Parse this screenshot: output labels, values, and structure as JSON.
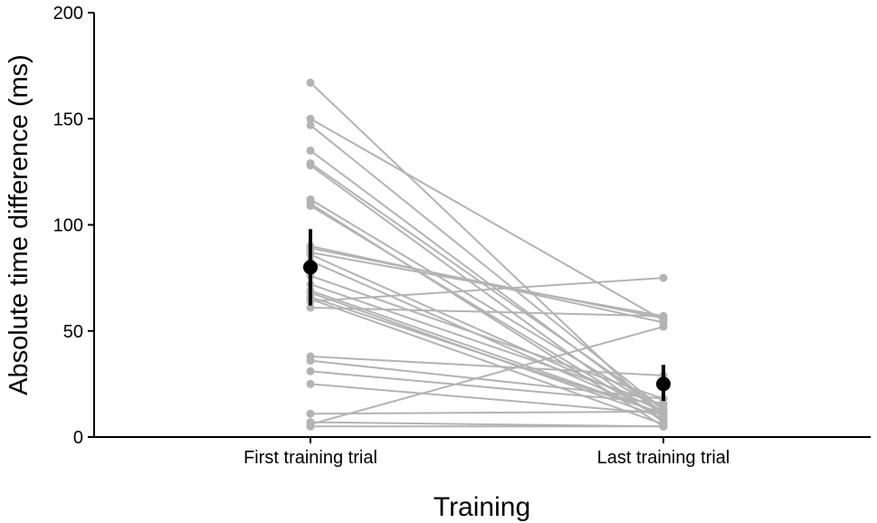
{
  "chart_data": {
    "type": "line",
    "xlabel": "Training",
    "ylabel": "Absolute time difference (ms)",
    "categories": [
      "First training trial",
      "Last training trial"
    ],
    "ylim": [
      0,
      200
    ],
    "yticks": [
      0,
      50,
      100,
      150,
      200
    ],
    "grid": false,
    "legend": "none",
    "colors": {
      "subject": "#b3b3b3",
      "mean": "#000000",
      "axis": "#000000"
    },
    "subjects": [
      [
        167,
        9
      ],
      [
        150,
        55
      ],
      [
        147,
        13
      ],
      [
        135,
        11
      ],
      [
        129,
        13
      ],
      [
        128,
        7
      ],
      [
        112,
        12
      ],
      [
        110,
        5
      ],
      [
        109,
        8
      ],
      [
        90,
        54
      ],
      [
        89,
        56
      ],
      [
        87,
        57
      ],
      [
        86,
        12
      ],
      [
        83,
        10
      ],
      [
        76,
        18
      ],
      [
        72,
        15
      ],
      [
        69,
        11
      ],
      [
        68,
        9
      ],
      [
        66,
        11
      ],
      [
        65,
        6
      ],
      [
        64,
        75
      ],
      [
        61,
        57
      ],
      [
        38,
        29
      ],
      [
        36,
        18
      ],
      [
        31,
        16
      ],
      [
        25,
        11
      ],
      [
        11,
        12
      ],
      [
        7,
        5
      ],
      [
        6,
        52
      ],
      [
        5,
        5
      ]
    ],
    "means": [
      {
        "category": "First training trial",
        "mean": 80,
        "lower": 62,
        "upper": 98
      },
      {
        "category": "Last training trial",
        "mean": 25,
        "lower": 17,
        "upper": 34
      }
    ]
  }
}
